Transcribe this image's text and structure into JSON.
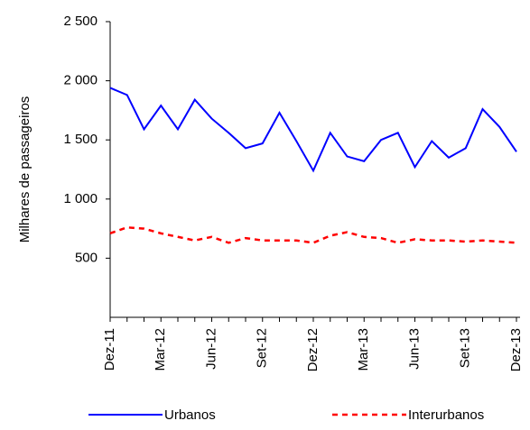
{
  "chart_data": {
    "type": "line",
    "y_label": "Milhares de passageiros",
    "categories": [
      "Dez-11",
      null,
      null,
      "Mar-12",
      null,
      null,
      "Jun-12",
      null,
      null,
      "Set-12",
      null,
      null,
      "Dez-12",
      null,
      null,
      "Mar-13",
      null,
      null,
      "Jun-13",
      null,
      null,
      "Set-13",
      null,
      null,
      "Dez-13"
    ],
    "series": [
      {
        "name": "Urbanos",
        "color": "#0000ff",
        "dash": "solid",
        "values": [
          1940,
          1880,
          1590,
          1790,
          1590,
          1840,
          1680,
          1560,
          1430,
          1470,
          1730,
          1490,
          1240,
          1560,
          1360,
          1320,
          1500,
          1560,
          1270,
          1490,
          1350,
          1430,
          1760,
          1610,
          1400
        ]
      },
      {
        "name": "Interurbanos",
        "color": "#ff0000",
        "dash": "dashed",
        "values": [
          710,
          760,
          750,
          710,
          680,
          650,
          680,
          630,
          670,
          650,
          650,
          650,
          630,
          690,
          720,
          680,
          670,
          630,
          660,
          650,
          650,
          640,
          650,
          640,
          630
        ]
      }
    ],
    "ylim": [
      0,
      2500
    ],
    "yticks": [
      {
        "value": 500,
        "label": "500"
      },
      {
        "value": 1000,
        "label": "1 000"
      },
      {
        "value": 1500,
        "label": "1 500"
      },
      {
        "value": 2000,
        "label": "2 000"
      },
      {
        "value": 2500,
        "label": "2 500"
      }
    ],
    "grid": false,
    "legend": "bottom"
  }
}
